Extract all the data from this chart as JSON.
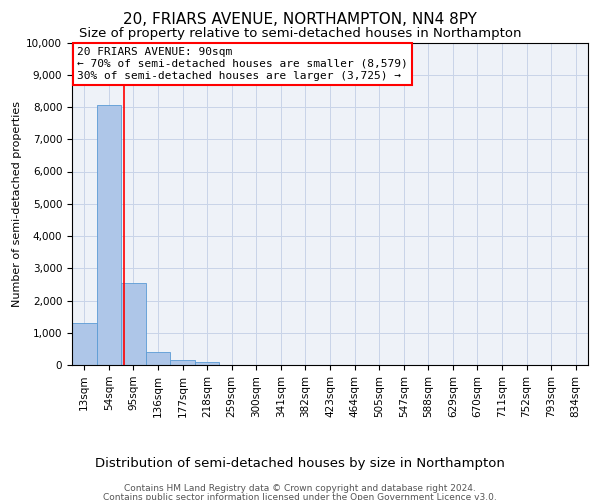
{
  "title": "20, FRIARS AVENUE, NORTHAMPTON, NN4 8PY",
  "subtitle": "Size of property relative to semi-detached houses in Northampton",
  "xlabel_dist": "Distribution of semi-detached houses by size in Northampton",
  "ylabel": "Number of semi-detached properties",
  "footer_line1": "Contains HM Land Registry data © Crown copyright and database right 2024.",
  "footer_line2": "Contains public sector information licensed under the Open Government Licence v3.0.",
  "categories": [
    "13sqm",
    "54sqm",
    "95sqm",
    "136sqm",
    "177sqm",
    "218sqm",
    "259sqm",
    "300sqm",
    "341sqm",
    "382sqm",
    "423sqm",
    "464sqm",
    "505sqm",
    "547sqm",
    "588sqm",
    "629sqm",
    "670sqm",
    "711sqm",
    "752sqm",
    "793sqm",
    "834sqm"
  ],
  "values": [
    1300,
    8050,
    2550,
    400,
    150,
    100,
    0,
    0,
    0,
    0,
    0,
    0,
    0,
    0,
    0,
    0,
    0,
    0,
    0,
    0,
    0
  ],
  "bar_color": "#aec6e8",
  "bar_edge_color": "#5b9bd5",
  "annotation_line1": "20 FRIARS AVENUE: 90sqm",
  "annotation_line2": "← 70% of semi-detached houses are smaller (8,579)",
  "annotation_line3": "30% of semi-detached houses are larger (3,725) →",
  "annotation_box_color": "#ffffff",
  "annotation_box_edgecolor": "red",
  "vline_x_index": 1.62,
  "vline_color": "red",
  "ylim": [
    0,
    10000
  ],
  "yticks": [
    0,
    1000,
    2000,
    3000,
    4000,
    5000,
    6000,
    7000,
    8000,
    9000,
    10000
  ],
  "grid_color": "#c8d4e8",
  "background_color": "#ffffff",
  "axes_bg_color": "#eef2f8",
  "title_fontsize": 11,
  "subtitle_fontsize": 9.5,
  "annotation_fontsize": 8,
  "ylabel_fontsize": 8,
  "tick_fontsize": 7.5,
  "footer_fontsize": 6.5
}
